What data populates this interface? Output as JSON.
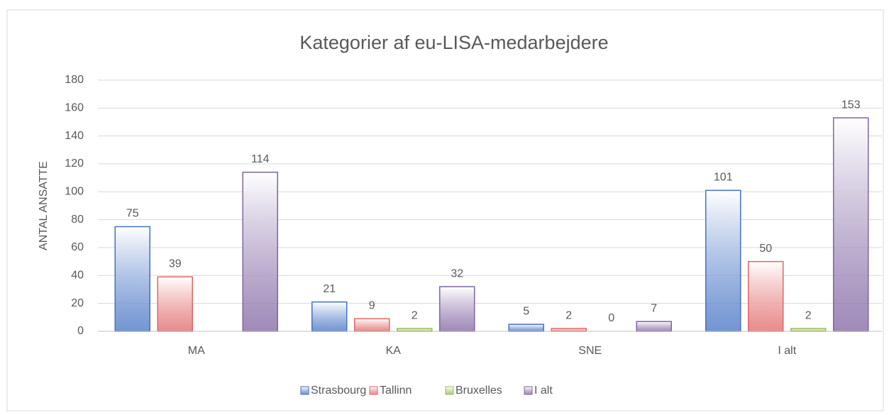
{
  "chart_data": {
    "type": "bar",
    "title": "Kategorier af eu-LISA-medarbejdere",
    "ylabel": "ANTAL ANSATTE",
    "categories": [
      "MA",
      "KA",
      "SNE",
      "I alt"
    ],
    "series": [
      {
        "name": "Strasbourg",
        "color": "#4472c4",
        "values": [
          75,
          21,
          5,
          101
        ]
      },
      {
        "name": "Tallinn",
        "color": "#e06666",
        "values": [
          39,
          9,
          2,
          50
        ]
      },
      {
        "name": "Bruxelles",
        "color": "#9bbb59",
        "values": [
          null,
          2,
          0,
          2
        ]
      },
      {
        "name": "I alt",
        "color": "#8064a2",
        "values": [
          114,
          32,
          7,
          153
        ]
      }
    ],
    "ylim": [
      0,
      180
    ],
    "yticks": [
      0,
      20,
      40,
      60,
      80,
      100,
      120,
      140,
      160,
      180
    ],
    "grid": true,
    "legend": "bottom"
  }
}
